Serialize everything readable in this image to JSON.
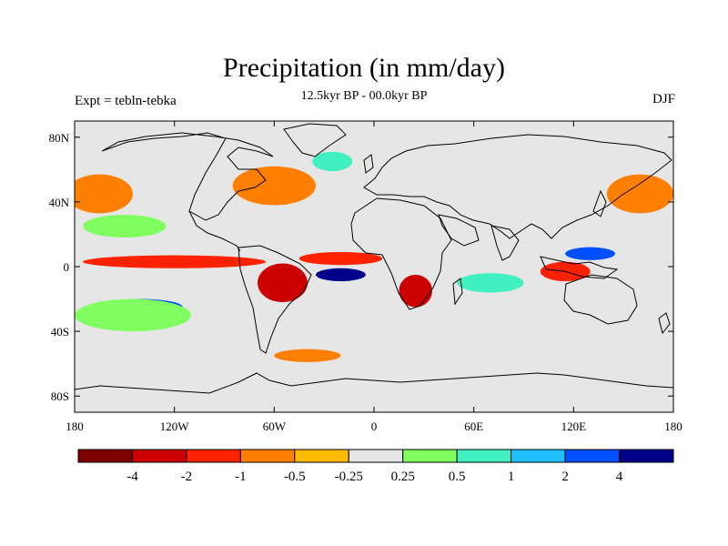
{
  "title": "Precipitation (in mm/day)",
  "subtitle": "12.5kyr BP - 00.0kyr BP",
  "left_label": "Expt = tebln-tebka",
  "right_label": "DJF",
  "map": {
    "projection": "cylindrical equidistant",
    "lon_range": [
      -180,
      180
    ],
    "lat_range": [
      -90,
      90
    ],
    "x_ticks": [
      {
        "lon": -180,
        "label": "180"
      },
      {
        "lon": -120,
        "label": "120W"
      },
      {
        "lon": -60,
        "label": "60W"
      },
      {
        "lon": 0,
        "label": "0"
      },
      {
        "lon": 60,
        "label": "60E"
      },
      {
        "lon": 120,
        "label": "120E"
      },
      {
        "lon": 180,
        "label": "180"
      }
    ],
    "y_ticks": [
      {
        "lat": 80,
        "label": "80N"
      },
      {
        "lat": 40,
        "label": "40N"
      },
      {
        "lat": 0,
        "label": "0"
      },
      {
        "lat": -40,
        "label": "40S"
      },
      {
        "lat": -80,
        "label": "80S"
      }
    ],
    "background_color": "#e6e6e6"
  },
  "colorbar": {
    "colors": [
      "#7f0000",
      "#cc0000",
      "#ff2200",
      "#ff7f00",
      "#ffbb00",
      "#e6e6e6",
      "#80ff60",
      "#40f0c0",
      "#20c0ff",
      "#0050ff",
      "#00008b"
    ],
    "labels": [
      "-4",
      "-2",
      "-1",
      "-0.5",
      "-0.25",
      "0.25",
      "0.5",
      "1",
      "2",
      "4"
    ]
  },
  "anomaly_regions": [
    {
      "name": "north-atlantic-dry",
      "class": "-1",
      "color": "#ff7f00",
      "lon": -60,
      "lat": 50,
      "rlon": 25,
      "rlat": 12
    },
    {
      "name": "greenland-sea-wet",
      "class": "1",
      "color": "#40f0c0",
      "lon": -25,
      "lat": 65,
      "rlon": 12,
      "rlat": 6
    },
    {
      "name": "north-pacific-dry",
      "class": "-0.5",
      "color": "#ff7f00",
      "lon": -165,
      "lat": 45,
      "rlon": 20,
      "rlat": 12
    },
    {
      "name": "north-pacific-wet",
      "class": "0.5",
      "color": "#80ff60",
      "lon": -150,
      "lat": 25,
      "rlon": 25,
      "rlat": 7
    },
    {
      "name": "east-asia-dry",
      "class": "-1",
      "color": "#ff7f00",
      "lon": 160,
      "lat": 45,
      "rlon": 20,
      "rlat": 12
    },
    {
      "name": "equatorial-pacific-dry",
      "class": "-2",
      "color": "#ff2200",
      "lon": -120,
      "lat": 3,
      "rlon": 55,
      "rlat": 4
    },
    {
      "name": "south-pacific-wet",
      "class": "2",
      "color": "#0050ff",
      "lon": -140,
      "lat": -25,
      "rlon": 25,
      "rlat": 5
    },
    {
      "name": "south-pacific-green",
      "class": "0.5",
      "color": "#80ff60",
      "lon": -145,
      "lat": -30,
      "rlon": 35,
      "rlat": 10
    },
    {
      "name": "amazon-dry",
      "class": "-2",
      "color": "#cc0000",
      "lon": -55,
      "lat": -10,
      "rlon": 15,
      "rlat": 12
    },
    {
      "name": "south-atlantic-wet",
      "class": "4",
      "color": "#00008b",
      "lon": -20,
      "lat": -5,
      "rlon": 15,
      "rlat": 4
    },
    {
      "name": "atlantic-itcz-dry",
      "class": "-2",
      "color": "#ff2200",
      "lon": -20,
      "lat": 5,
      "rlon": 25,
      "rlat": 4
    },
    {
      "name": "africa-dry",
      "class": "-2",
      "color": "#cc0000",
      "lon": 25,
      "lat": -15,
      "rlon": 10,
      "rlat": 10
    },
    {
      "name": "indian-ocean-wet",
      "class": "1",
      "color": "#40f0c0",
      "lon": 70,
      "lat": -10,
      "rlon": 20,
      "rlat": 6
    },
    {
      "name": "maritime-continent-dry",
      "class": "-2",
      "color": "#ff2200",
      "lon": 115,
      "lat": -3,
      "rlon": 15,
      "rlat": 6
    },
    {
      "name": "west-pacific-wet",
      "class": "2",
      "color": "#0050ff",
      "lon": 130,
      "lat": 8,
      "rlon": 15,
      "rlat": 4
    },
    {
      "name": "southern-ocean-dry",
      "class": "-0.5",
      "color": "#ff7f00",
      "lon": -40,
      "lat": -55,
      "rlon": 20,
      "rlat": 4
    }
  ],
  "landmasses": [
    "north-america",
    "south-america",
    "greenland",
    "eurasia",
    "africa",
    "arabia",
    "india",
    "australia",
    "antarctica",
    "indonesia",
    "japan",
    "madagascar",
    "uk",
    "new-zealand"
  ]
}
